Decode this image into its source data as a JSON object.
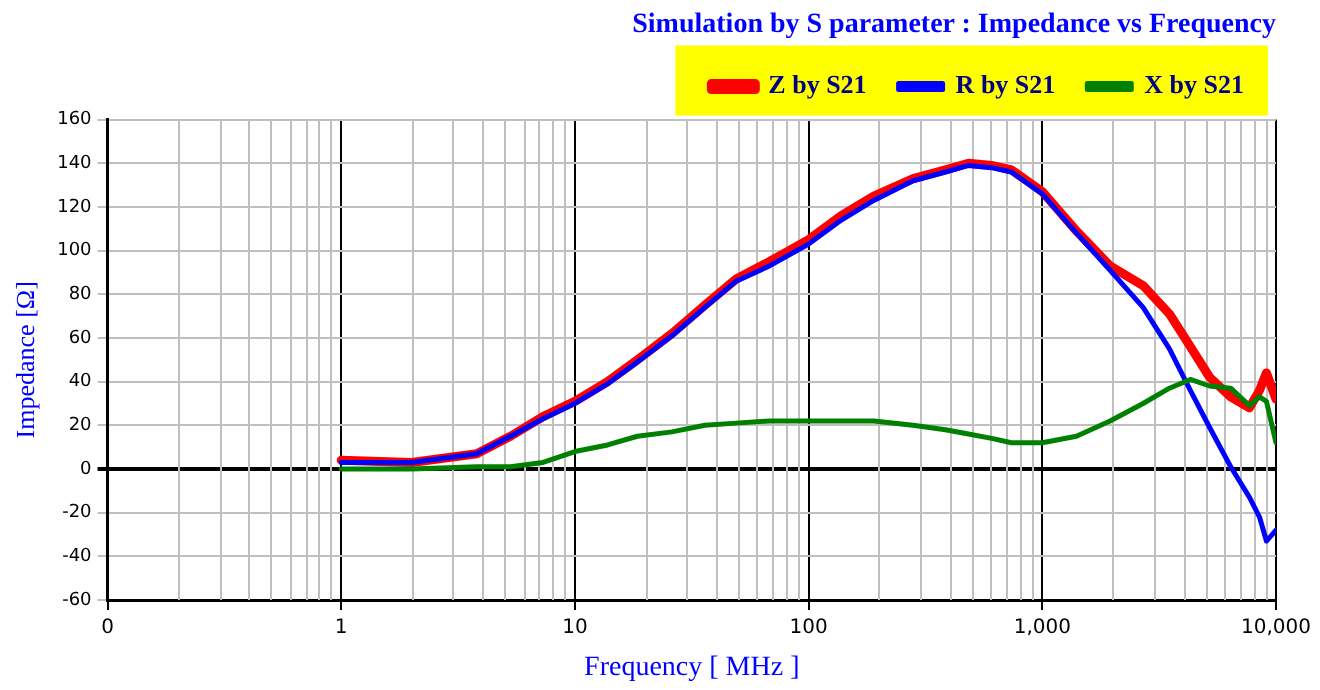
{
  "chart_data": {
    "type": "line",
    "title": "Simulation by S parameter : Impedance vs Frequency",
    "xlabel": "Frequency [ MHz ]",
    "ylabel": "Impedance [Ω]",
    "x": [
      1,
      2,
      3.8,
      5.3,
      7.3,
      10,
      13.8,
      18.5,
      26,
      36,
      49,
      68,
      100,
      138,
      190,
      280,
      385,
      483,
      607,
      737,
      1000,
      1400,
      1950,
      2700,
      3500,
      4300,
      5200,
      6400,
      7700,
      8500,
      9100,
      10000
    ],
    "series": [
      {
        "name": "Z by S21",
        "color": "#ff0000",
        "values": [
          4,
          3,
          7,
          15,
          24,
          31,
          40,
          50,
          62,
          75,
          87,
          95,
          105,
          116,
          125,
          133,
          137,
          140,
          139,
          137,
          127,
          109,
          93,
          84,
          71,
          56,
          42,
          33,
          28,
          36,
          44,
          32
        ]
      },
      {
        "name": "R by S21",
        "color": "#0000ff",
        "values": [
          3,
          3,
          7,
          15,
          23,
          30,
          39,
          49,
          61,
          74,
          86,
          93,
          103,
          114,
          123,
          132,
          136,
          139,
          138,
          136,
          126,
          108,
          91,
          74,
          55,
          36,
          19,
          1,
          -13,
          -22,
          -33,
          -28
        ]
      },
      {
        "name": "X by S21",
        "color": "#008000",
        "values": [
          0,
          0,
          1,
          1,
          3,
          8,
          11,
          15,
          17,
          20,
          21,
          22,
          22,
          22,
          22,
          20,
          18,
          16,
          14,
          12,
          12,
          15,
          22,
          30,
          37,
          41,
          38,
          37,
          29,
          33,
          31,
          12
        ]
      }
    ],
    "log": "x",
    "xlim": [
      0.1,
      10000
    ],
    "xticks": [
      {
        "value": 0.1,
        "label": "0"
      },
      1,
      10,
      100,
      {
        "value": 1000,
        "label": "1,000"
      },
      {
        "value": 10000,
        "label": "10,000"
      }
    ],
    "ylim": [
      -60,
      160
    ],
    "yticks": [
      -60,
      -40,
      -20,
      0,
      20,
      40,
      60,
      80,
      100,
      120,
      140,
      160
    ],
    "grid": true,
    "legend": "top",
    "marker": "none",
    "line_style": "solid"
  }
}
